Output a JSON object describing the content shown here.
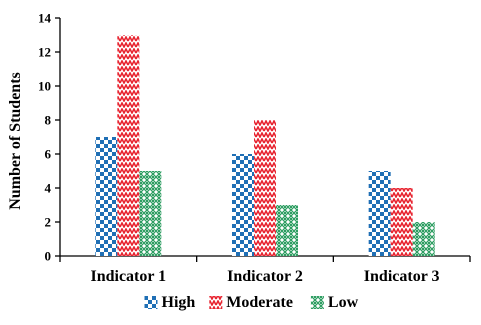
{
  "chart_data": {
    "type": "bar",
    "title": "",
    "xlabel": "",
    "ylabel": "Number of Students",
    "ylim": [
      0,
      14
    ],
    "yticks": [
      0,
      2,
      4,
      6,
      8,
      10,
      12,
      14
    ],
    "categories": [
      "Indicator 1",
      "Indicator 2",
      "Indicator 3"
    ],
    "series": [
      {
        "name": "High",
        "values": [
          7,
          6,
          5
        ],
        "color": "#1f6fb5",
        "pattern": "blue-checker"
      },
      {
        "name": "Moderate",
        "values": [
          13,
          8,
          4
        ],
        "color": "#e8232f",
        "pattern": "red-zigzag"
      },
      {
        "name": "Low",
        "values": [
          5,
          3,
          2
        ],
        "color": "#2e9e62",
        "pattern": "green-diamond"
      }
    ],
    "legend_position": "bottom",
    "grid": false
  }
}
